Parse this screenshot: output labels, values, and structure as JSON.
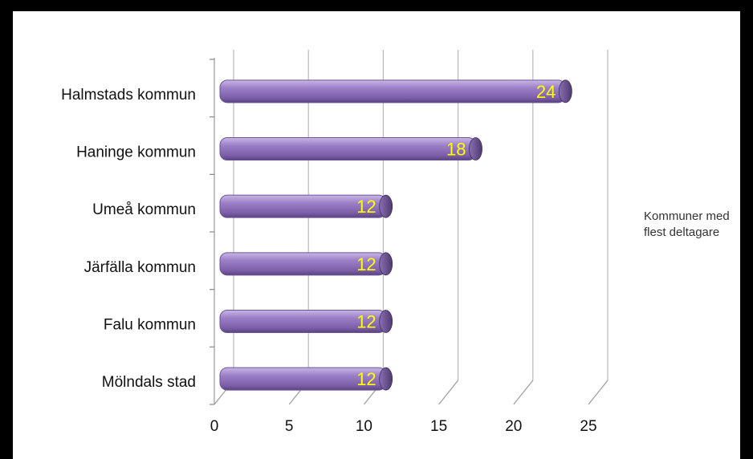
{
  "chart_data": {
    "type": "bar",
    "orientation": "horizontal",
    "categories": [
      "Halmstads kommun",
      "Haninge  kommun",
      "Umeå kommun",
      "Järfälla  kommun",
      "Falu kommun",
      "Mölndals stad"
    ],
    "series": [
      {
        "name": "Kommuner med flest deltagare",
        "values": [
          24,
          18,
          12,
          12,
          12,
          12
        ]
      }
    ],
    "data_labels": [
      "24",
      "18",
      "12",
      "12",
      "12",
      "12"
    ],
    "x_ticks": [
      "0",
      "5",
      "10",
      "15",
      "20",
      "25"
    ],
    "xlim": [
      0,
      25
    ],
    "grid": true,
    "legend_position": "right",
    "bar_color": "#9b7fc6",
    "data_label_color": "#ffff00"
  }
}
